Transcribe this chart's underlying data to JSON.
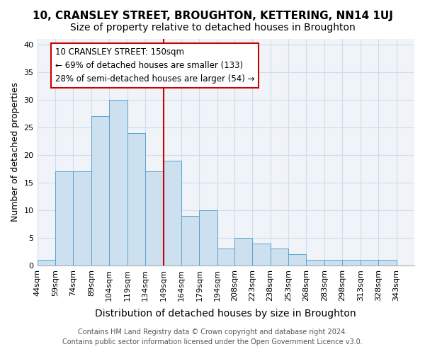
{
  "title": "10, CRANSLEY STREET, BROUGHTON, KETTERING, NN14 1UJ",
  "subtitle": "Size of property relative to detached houses in Broughton",
  "xlabel": "Distribution of detached houses by size in Broughton",
  "ylabel": "Number of detached properties",
  "bin_labels": [
    "44sqm",
    "59sqm",
    "74sqm",
    "89sqm",
    "104sqm",
    "119sqm",
    "134sqm",
    "149sqm",
    "164sqm",
    "179sqm",
    "194sqm",
    "208sqm",
    "223sqm",
    "238sqm",
    "253sqm",
    "268sqm",
    "283sqm",
    "298sqm",
    "313sqm",
    "328sqm",
    "343sqm"
  ],
  "bin_edges": [
    44,
    59,
    74,
    89,
    104,
    119,
    134,
    149,
    164,
    179,
    194,
    208,
    223,
    238,
    253,
    268,
    283,
    298,
    313,
    328,
    343
  ],
  "bar_heights": [
    1,
    17,
    17,
    27,
    30,
    24,
    17,
    19,
    9,
    10,
    3,
    5,
    4,
    3,
    2,
    1,
    1,
    1,
    1,
    1
  ],
  "bar_color": "#cce0f0",
  "bar_edge_color": "#5ba3d0",
  "vline_x": 149,
  "vline_color": "#cc0000",
  "annotation_box_text": "10 CRANSLEY STREET: 150sqm\n← 69% of detached houses are smaller (133)\n28% of semi-detached houses are larger (54) →",
  "annotation_box_color": "#cc0000",
  "ylim": [
    0,
    41
  ],
  "yticks": [
    0,
    5,
    10,
    15,
    20,
    25,
    30,
    35,
    40
  ],
  "grid_color": "#ccddee",
  "bg_color": "#f0f4f8",
  "footer_line1": "Contains HM Land Registry data © Crown copyright and database right 2024.",
  "footer_line2": "Contains public sector information licensed under the Open Government Licence v3.0.",
  "title_fontsize": 11,
  "subtitle_fontsize": 10,
  "xlabel_fontsize": 10,
  "ylabel_fontsize": 9,
  "tick_fontsize": 8,
  "annotation_fontsize": 8.5,
  "footer_fontsize": 7
}
